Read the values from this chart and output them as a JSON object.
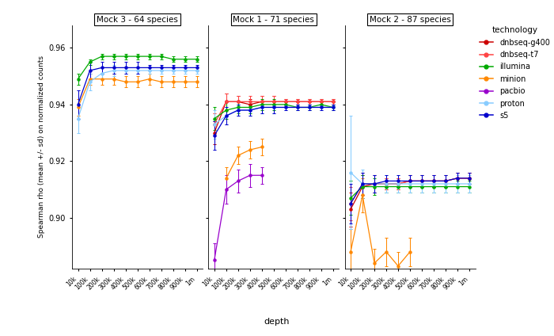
{
  "xlabel": "depth",
  "ylabel": "Spearman rho (mean +/- sd) on normalized counts",
  "panels": [
    "Mock 3 - 64 species",
    "Mock 1 - 71 species",
    "Mock 2 - 87 species"
  ],
  "x_labels": [
    "10k",
    "100k",
    "200k",
    "300k",
    "400k",
    "500k",
    "600k",
    "700k",
    "800k",
    "900k",
    "1m"
  ],
  "x_vals": [
    0,
    1,
    2,
    3,
    4,
    5,
    6,
    7,
    8,
    9,
    10
  ],
  "ylim": [
    0.882,
    0.968
  ],
  "yticks": [
    0.9,
    0.92,
    0.94,
    0.96
  ],
  "technologies": [
    "dnbseq-g400",
    "dnbseq-t7",
    "illumina",
    "minion",
    "pacbio",
    "proton",
    "s5"
  ],
  "colors": {
    "dnbseq-g400": "#CC0000",
    "dnbseq-t7": "#FF4444",
    "illumina": "#00AA00",
    "minion": "#FF8800",
    "pacbio": "#9900CC",
    "proton": "#88CCFF",
    "s5": "#0000CC"
  },
  "panel0": {
    "dnbseq-g400": {
      "y": [
        null,
        null,
        null,
        null,
        null,
        null,
        null,
        null,
        null,
        null,
        null
      ],
      "yerr": [
        null,
        null,
        null,
        null,
        null,
        null,
        null,
        null,
        null,
        null,
        null
      ]
    },
    "dnbseq-t7": {
      "y": [
        null,
        null,
        null,
        null,
        null,
        null,
        null,
        null,
        null,
        null,
        null
      ],
      "yerr": [
        null,
        null,
        null,
        null,
        null,
        null,
        null,
        null,
        null,
        null,
        null
      ]
    },
    "illumina": {
      "y": [
        0.949,
        0.955,
        0.957,
        0.957,
        0.957,
        0.957,
        0.957,
        0.957,
        0.956,
        0.956,
        0.956
      ],
      "yerr": [
        0.002,
        0.001,
        0.001,
        0.001,
        0.001,
        0.001,
        0.001,
        0.001,
        0.001,
        0.001,
        0.001
      ]
    },
    "minion": {
      "y": [
        0.939,
        0.949,
        0.949,
        0.949,
        0.948,
        0.948,
        0.949,
        0.948,
        0.948,
        0.948,
        0.948
      ],
      "yerr": [
        0.003,
        0.002,
        0.002,
        0.002,
        0.002,
        0.002,
        0.002,
        0.002,
        0.002,
        0.002,
        0.002
      ]
    },
    "pacbio": {
      "y": [
        null,
        null,
        null,
        null,
        null,
        null,
        null,
        null,
        null,
        null,
        null
      ],
      "yerr": [
        null,
        null,
        null,
        null,
        null,
        null,
        null,
        null,
        null,
        null,
        null
      ]
    },
    "proton": {
      "y": [
        0.935,
        0.948,
        0.951,
        0.952,
        0.952,
        0.952,
        0.952,
        0.952,
        0.952,
        0.952,
        0.952
      ],
      "yerr": [
        0.005,
        0.003,
        0.002,
        0.002,
        0.001,
        0.001,
        0.001,
        0.001,
        0.001,
        0.001,
        0.001
      ]
    },
    "s5": {
      "y": [
        0.94,
        0.952,
        0.953,
        0.953,
        0.953,
        0.953,
        0.953,
        0.953,
        0.953,
        0.953,
        0.953
      ],
      "yerr": [
        0.005,
        0.003,
        0.002,
        0.002,
        0.002,
        0.002,
        0.001,
        0.001,
        0.001,
        0.001,
        0.001
      ]
    }
  },
  "panel1": {
    "dnbseq-g400": {
      "y": [
        0.93,
        0.941,
        0.941,
        0.94,
        0.941,
        0.941,
        0.941,
        0.941,
        0.941,
        0.941,
        0.941
      ],
      "yerr": [
        0.004,
        0.003,
        0.002,
        0.002,
        0.002,
        0.002,
        0.001,
        0.001,
        0.001,
        0.001,
        0.001
      ]
    },
    "dnbseq-t7": {
      "y": [
        0.933,
        0.941,
        0.941,
        0.941,
        0.941,
        0.941,
        0.941,
        0.941,
        0.941,
        0.941,
        0.941
      ],
      "yerr": [
        0.004,
        0.003,
        0.002,
        0.002,
        0.002,
        0.002,
        0.001,
        0.001,
        0.001,
        0.001,
        0.001
      ]
    },
    "illumina": {
      "y": [
        0.935,
        0.938,
        0.939,
        0.939,
        0.94,
        0.94,
        0.94,
        0.939,
        0.939,
        0.94,
        0.939
      ],
      "yerr": [
        0.004,
        0.003,
        0.002,
        0.002,
        0.002,
        0.002,
        0.001,
        0.001,
        0.001,
        0.001,
        0.001
      ]
    },
    "minion": {
      "y": [
        null,
        0.914,
        0.922,
        0.924,
        0.925,
        null,
        null,
        null,
        null,
        null,
        null
      ],
      "yerr": [
        null,
        0.004,
        0.003,
        0.003,
        0.003,
        null,
        null,
        null,
        null,
        null,
        null
      ]
    },
    "pacbio": {
      "y": [
        0.885,
        0.91,
        0.913,
        0.915,
        0.915,
        null,
        null,
        null,
        null,
        null,
        null
      ],
      "yerr": [
        0.006,
        0.005,
        0.004,
        0.004,
        0.003,
        null,
        null,
        null,
        null,
        null,
        null
      ]
    },
    "proton": {
      "y": [
        0.933,
        0.936,
        0.938,
        0.938,
        0.939,
        0.939,
        0.939,
        0.939,
        0.939,
        0.939,
        0.939
      ],
      "yerr": [
        0.005,
        0.003,
        0.002,
        0.002,
        0.002,
        0.002,
        0.001,
        0.001,
        0.001,
        0.001,
        0.001
      ]
    },
    "s5": {
      "y": [
        0.929,
        0.936,
        0.938,
        0.938,
        0.939,
        0.939,
        0.939,
        0.939,
        0.939,
        0.939,
        0.939
      ],
      "yerr": [
        0.005,
        0.003,
        0.002,
        0.002,
        0.002,
        0.002,
        0.001,
        0.001,
        0.001,
        0.001,
        0.001
      ]
    }
  },
  "panel2": {
    "dnbseq-g400": {
      "y": [
        0.903,
        0.911,
        0.912,
        0.912,
        0.912,
        0.913,
        0.913,
        0.913,
        0.913,
        0.914,
        0.914
      ],
      "yerr": [
        0.006,
        0.004,
        0.003,
        0.002,
        0.002,
        0.002,
        0.002,
        0.002,
        0.002,
        0.002,
        0.002
      ]
    },
    "dnbseq-t7": {
      "y": [
        0.905,
        0.912,
        0.912,
        0.912,
        0.912,
        0.913,
        0.913,
        0.913,
        0.913,
        0.914,
        0.914
      ],
      "yerr": [
        0.006,
        0.004,
        0.003,
        0.002,
        0.002,
        0.002,
        0.002,
        0.002,
        0.002,
        0.002,
        0.002
      ]
    },
    "illumina": {
      "y": [
        0.907,
        0.911,
        0.911,
        0.911,
        0.911,
        0.911,
        0.911,
        0.911,
        0.911,
        0.911,
        0.911
      ],
      "yerr": [
        0.006,
        0.004,
        0.003,
        0.002,
        0.002,
        0.002,
        0.002,
        0.002,
        0.002,
        0.002,
        0.002
      ]
    },
    "minion": {
      "y": [
        0.888,
        0.908,
        0.884,
        0.888,
        0.883,
        0.888,
        null,
        null,
        null,
        null,
        null
      ],
      "yerr": [
        0.008,
        0.006,
        0.005,
        0.005,
        0.005,
        0.005,
        null,
        null,
        null,
        null,
        null
      ]
    },
    "pacbio": {
      "y": [
        null,
        null,
        null,
        null,
        null,
        null,
        null,
        null,
        null,
        null,
        null
      ],
      "yerr": [
        null,
        null,
        null,
        null,
        null,
        null,
        null,
        null,
        null,
        null,
        null
      ]
    },
    "proton": {
      "y": [
        0.916,
        0.912,
        0.912,
        0.912,
        0.912,
        0.912,
        0.912,
        0.912,
        0.912,
        0.912,
        0.912
      ],
      "yerr": [
        0.02,
        0.005,
        0.003,
        0.003,
        0.003,
        0.003,
        0.003,
        0.003,
        0.003,
        0.003,
        0.003
      ]
    },
    "s5": {
      "y": [
        0.905,
        0.912,
        0.912,
        0.913,
        0.913,
        0.913,
        0.913,
        0.913,
        0.913,
        0.914,
        0.914
      ],
      "yerr": [
        0.007,
        0.004,
        0.003,
        0.002,
        0.002,
        0.002,
        0.002,
        0.002,
        0.002,
        0.002,
        0.002
      ]
    }
  },
  "background_color": "#ffffff",
  "panel_bg": "#ffffff"
}
